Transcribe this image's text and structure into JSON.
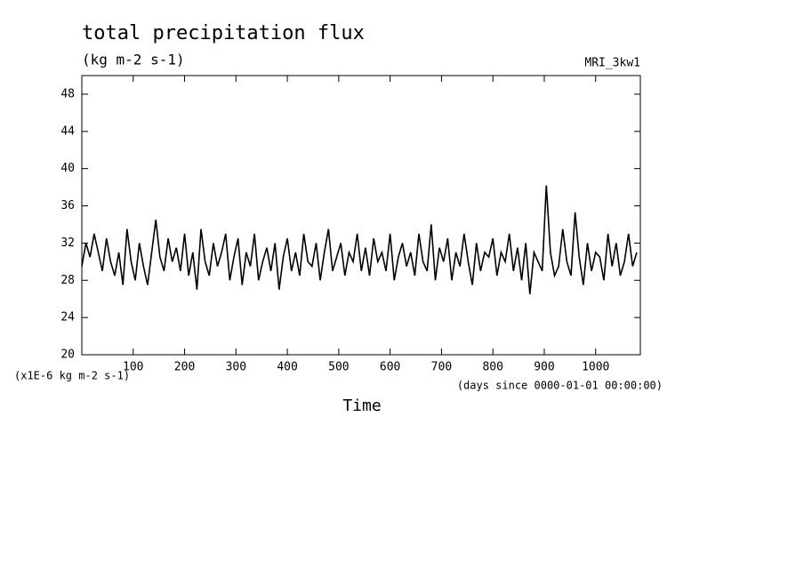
{
  "chart_data": {
    "type": "line",
    "title": "total precipitation flux",
    "subtitle": "(kg m-2 s-1)",
    "model": "MRI_3kw1",
    "y_axis_label": "(x1E-6 kg m-2 s-1)",
    "x_units": "(days since 0000-01-01 00:00:00)",
    "x_axis_label": "Time",
    "xlim": [
      0,
      1087
    ],
    "xticks": [
      100,
      200,
      300,
      400,
      500,
      600,
      700,
      800,
      900,
      1000
    ],
    "ylim": [
      20,
      50
    ],
    "yticks": [
      20,
      24,
      28,
      32,
      36,
      40,
      44,
      48
    ],
    "x": [
      0,
      8,
      16,
      24,
      32,
      40,
      48,
      56,
      64,
      72,
      80,
      88,
      96,
      104,
      112,
      120,
      128,
      136,
      144,
      152,
      160,
      168,
      176,
      184,
      192,
      200,
      208,
      216,
      224,
      232,
      240,
      248,
      256,
      264,
      272,
      280,
      288,
      296,
      304,
      312,
      320,
      328,
      336,
      344,
      352,
      360,
      368,
      376,
      384,
      392,
      400,
      408,
      416,
      424,
      432,
      440,
      448,
      456,
      464,
      472,
      480,
      488,
      496,
      504,
      512,
      520,
      528,
      536,
      544,
      552,
      560,
      568,
      576,
      584,
      592,
      600,
      608,
      616,
      624,
      632,
      640,
      648,
      656,
      664,
      672,
      680,
      688,
      696,
      704,
      712,
      720,
      728,
      736,
      744,
      752,
      760,
      768,
      776,
      784,
      792,
      800,
      808,
      816,
      824,
      832,
      840,
      848,
      856,
      864,
      872,
      880,
      888,
      896,
      904,
      912,
      920,
      928,
      936,
      944,
      952,
      960,
      968,
      976,
      984,
      992,
      1000,
      1008,
      1016,
      1024,
      1032,
      1040,
      1048,
      1056,
      1064,
      1072,
      1080
    ],
    "series": [
      {
        "name": "MRI_3kw1",
        "color": "#000000",
        "values": [
          29.5,
          32,
          30.5,
          33,
          31,
          29,
          32.5,
          30,
          28.5,
          31,
          27.5,
          33.5,
          30,
          28,
          32,
          29.5,
          27.5,
          31,
          34.5,
          30.5,
          29,
          32.5,
          30,
          31.5,
          29,
          33,
          28.5,
          31,
          27,
          33.5,
          30,
          28.5,
          32,
          29.5,
          31,
          33,
          28,
          30.5,
          32.5,
          27.5,
          31,
          29.5,
          33,
          28,
          30,
          31.5,
          29,
          32,
          27,
          30.5,
          32.5,
          29,
          31,
          28.5,
          33,
          30,
          29.5,
          32,
          28,
          31,
          33.5,
          29,
          30.5,
          32,
          28.5,
          31,
          30,
          33,
          29,
          31.5,
          28.5,
          32.5,
          30,
          31,
          29,
          33,
          28,
          30.5,
          32,
          29.5,
          31,
          28.5,
          33,
          30,
          29,
          34,
          28,
          31.5,
          30,
          32.5,
          28,
          31,
          29.5,
          33,
          30,
          27.5,
          32,
          29,
          31,
          30.5,
          32.5,
          28.5,
          31,
          30,
          33,
          29,
          31.5,
          28,
          32,
          26.5,
          31,
          30,
          29,
          38.2,
          31,
          28.5,
          29.5,
          33.5,
          30,
          28.5,
          35.3,
          30.5,
          27.5,
          32,
          29,
          31,
          30.5,
          28,
          33,
          29.5,
          32,
          28.5,
          30,
          33,
          29.5,
          31
        ]
      }
    ]
  }
}
